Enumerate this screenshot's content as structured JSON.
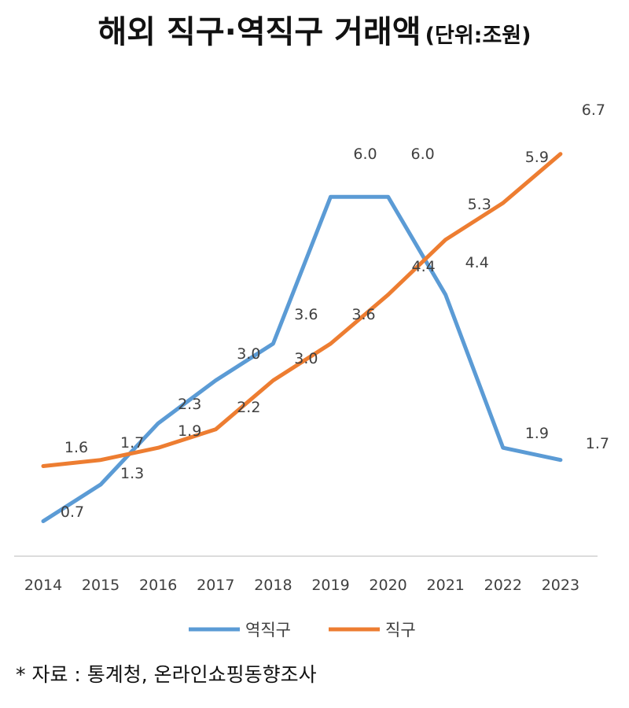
{
  "chart_data": {
    "type": "line",
    "title": "해외 직구·역직구 거래액",
    "unit_note": "(단위:조원)",
    "categories": [
      "2014",
      "2015",
      "2016",
      "2017",
      "2018",
      "2019",
      "2020",
      "2021",
      "2022",
      "2023"
    ],
    "series": [
      {
        "name": "역직구",
        "color": "#5B9BD5",
        "values": [
          0.7,
          1.3,
          2.3,
          3.0,
          3.6,
          6.0,
          6.0,
          4.4,
          1.9,
          1.7
        ]
      },
      {
        "name": "직구",
        "color": "#ED7D31",
        "values": [
          1.6,
          1.7,
          1.9,
          2.2,
          3.0,
          3.6,
          4.4,
          5.3,
          5.9,
          6.7
        ]
      }
    ],
    "ylim": [
      0,
      7
    ],
    "grid": false,
    "legend_position": "bottom",
    "data_labels": true
  },
  "source_note": "* 자료 : 통계청, 온라인쇼핑동향조사"
}
